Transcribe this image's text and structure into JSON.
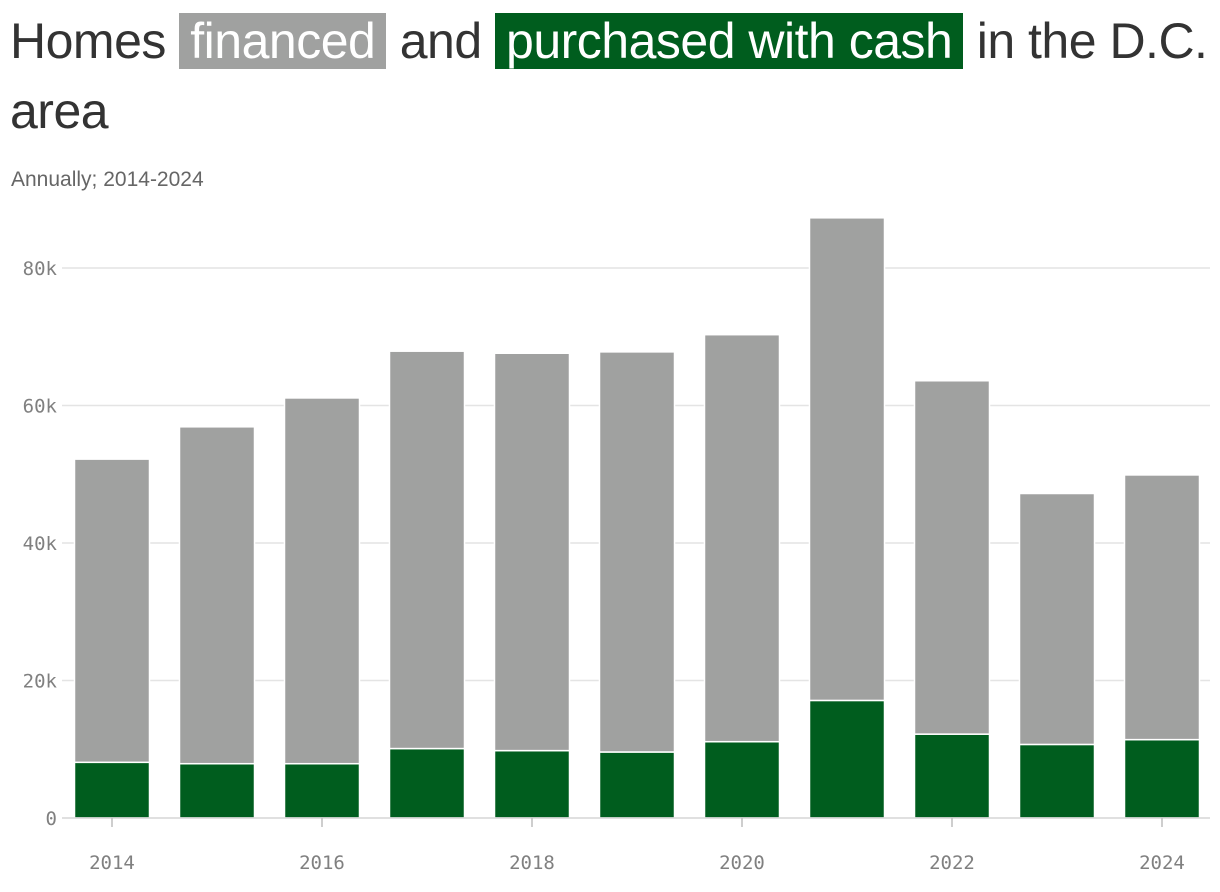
{
  "title": {
    "prefix": "Homes ",
    "financed": "financed",
    "middle": " and ",
    "cash": "purchased with cash",
    "suffix": " in the D.C. area"
  },
  "subtitle": "Annually; 2014-2024",
  "colors": {
    "financed": "#a0a1a0",
    "cash": "#005d1e",
    "grid": "#e4e4e4",
    "text": "#333333",
    "tick": "#808080"
  },
  "chart_data": {
    "type": "bar",
    "stacked": true,
    "categories": [
      "2014",
      "2015",
      "2016",
      "2017",
      "2018",
      "2019",
      "2020",
      "2021",
      "2022",
      "2023",
      "2024"
    ],
    "series": [
      {
        "name": "purchased with cash",
        "color": "#005d1e",
        "values": [
          8100,
          7900,
          7900,
          10100,
          9800,
          9600,
          11100,
          17100,
          12200,
          10700,
          11400
        ]
      },
      {
        "name": "financed",
        "color": "#a0a1a0",
        "values": [
          44100,
          49000,
          53200,
          57800,
          57800,
          58200,
          59200,
          70200,
          51400,
          36500,
          38500
        ]
      }
    ],
    "ylim": [
      0,
      88000
    ],
    "yticks": [
      0,
      20000,
      40000,
      60000,
      80000
    ],
    "ytick_labels": [
      "0",
      "20k",
      "40k",
      "60k",
      "80k"
    ],
    "xticks": [
      "2014",
      "2016",
      "2018",
      "2020",
      "2022",
      "2024"
    ],
    "grid": true,
    "xlabel": "",
    "ylabel": ""
  }
}
